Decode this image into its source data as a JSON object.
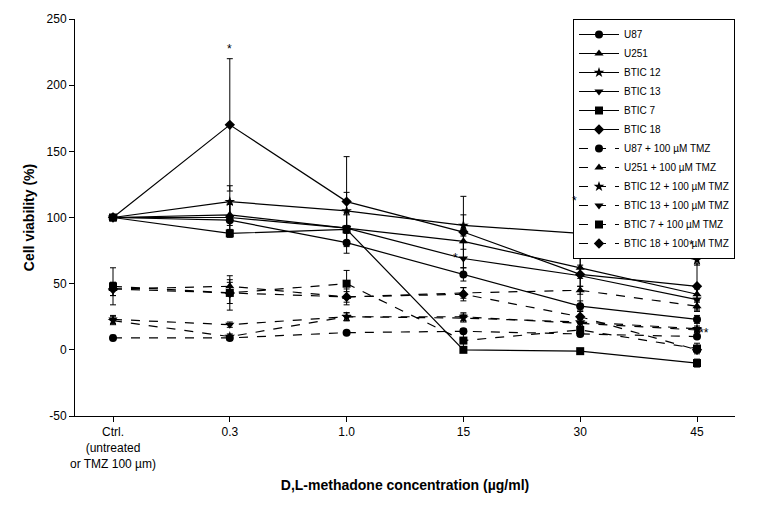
{
  "chart_data": {
    "type": "line",
    "x_label": "D,L-methadone concentration (µg/ml)",
    "y_label": "Cell viability (%)",
    "categories": [
      "Ctrl.\n(untreated\nor TMZ 100 µm)",
      "0.3",
      "1.0",
      "15",
      "30",
      "45"
    ],
    "ylim": [
      -50,
      250
    ],
    "yticks": [
      -50,
      0,
      50,
      100,
      150,
      200,
      250
    ],
    "grid": false,
    "legend": "upper right",
    "series": [
      {
        "name": "U87",
        "color": "#000000",
        "marker": "circle",
        "line_style": "solid",
        "values": [
          100,
          98,
          81,
          57,
          33,
          23
        ],
        "error": [
          0,
          12,
          8,
          5,
          4,
          3
        ],
        "significance": [
          null,
          null,
          null,
          "*",
          null,
          null
        ]
      },
      {
        "name": "U251",
        "color": "#000000",
        "marker": "triangle-up",
        "line_style": "solid",
        "values": [
          100,
          102,
          92,
          82,
          62,
          42
        ],
        "error": [
          0,
          8,
          12,
          6,
          8,
          6
        ],
        "significance": [
          null,
          null,
          null,
          null,
          null,
          null
        ]
      },
      {
        "name": "BTIC 12",
        "color": "#000000",
        "marker": "star",
        "line_style": "solid",
        "values": [
          100,
          112,
          105,
          94,
          88,
          68
        ],
        "error": [
          0,
          12,
          14,
          8,
          17,
          4
        ],
        "significance": [
          null,
          null,
          null,
          null,
          "*",
          "*"
        ]
      },
      {
        "name": "BTIC 13",
        "color": "#000000",
        "marker": "triangle-down",
        "line_style": "solid",
        "values": [
          100,
          100,
          92,
          69,
          56,
          38
        ],
        "error": [
          0,
          10,
          10,
          12,
          8,
          8
        ],
        "significance": [
          null,
          null,
          null,
          null,
          null,
          null
        ]
      },
      {
        "name": "BTIC 7",
        "color": "#000000",
        "marker": "square",
        "line_style": "solid",
        "values": [
          100,
          88,
          91,
          0,
          -1,
          -10
        ],
        "error": [
          0,
          3,
          3,
          2,
          2,
          3
        ],
        "significance": [
          null,
          null,
          null,
          null,
          null,
          null
        ]
      },
      {
        "name": "BTIC 18",
        "color": "#000000",
        "marker": "diamond",
        "line_style": "solid",
        "values": [
          100,
          170,
          112,
          89,
          57,
          48
        ],
        "error": [
          0,
          50,
          34,
          27,
          27,
          17
        ],
        "significance": [
          null,
          "*",
          null,
          null,
          null,
          null
        ]
      },
      {
        "name": "U87 + 100 µM TMZ",
        "color": "#000000",
        "marker": "circle",
        "line_style": "dash",
        "values": [
          9,
          9,
          13,
          14,
          12,
          10
        ],
        "error": [
          2,
          1,
          1,
          1,
          1,
          1
        ],
        "significance": [
          null,
          null,
          null,
          null,
          null,
          null
        ]
      },
      {
        "name": "U251 + 100 µM TMZ",
        "color": "#000000",
        "marker": "triangle-up",
        "line_style": "dash",
        "values": [
          46,
          48,
          40,
          43,
          45,
          33
        ],
        "error": [
          5,
          5,
          6,
          4,
          3,
          4
        ],
        "significance": [
          null,
          null,
          null,
          null,
          null,
          null
        ]
      },
      {
        "name": "BTIC 12 + 100 µM TMZ",
        "color": "#000000",
        "marker": "star",
        "line_style": "dash",
        "values": [
          22,
          10,
          25,
          24,
          21,
          16
        ],
        "error": [
          3,
          2,
          3,
          3,
          3,
          2
        ],
        "significance": [
          null,
          null,
          null,
          null,
          null,
          null
        ]
      },
      {
        "name": "BTIC 13 + 100 µM TMZ",
        "color": "#000000",
        "marker": "triangle-down",
        "line_style": "dash",
        "values": [
          23,
          19,
          25,
          25,
          20,
          15
        ],
        "error": [
          3,
          2,
          3,
          3,
          3,
          2
        ],
        "significance": [
          null,
          null,
          null,
          null,
          null,
          null
        ]
      },
      {
        "name": "BTIC 7 + 100 µM TMZ",
        "color": "#000000",
        "marker": "square",
        "line_style": "dash",
        "values": [
          48,
          43,
          50,
          7,
          15,
          1
        ],
        "error": [
          14,
          8,
          10,
          9,
          5,
          4
        ],
        "significance": [
          null,
          null,
          null,
          null,
          null,
          "**"
        ]
      },
      {
        "name": "BTIC 18 + 100 µM TMZ",
        "color": "#000000",
        "marker": "diamond",
        "line_style": "dash",
        "values": [
          46,
          43,
          40,
          42,
          25,
          0
        ],
        "error": [
          5,
          13,
          4,
          5,
          4,
          2
        ],
        "significance": [
          null,
          null,
          null,
          null,
          null,
          null
        ]
      }
    ]
  }
}
